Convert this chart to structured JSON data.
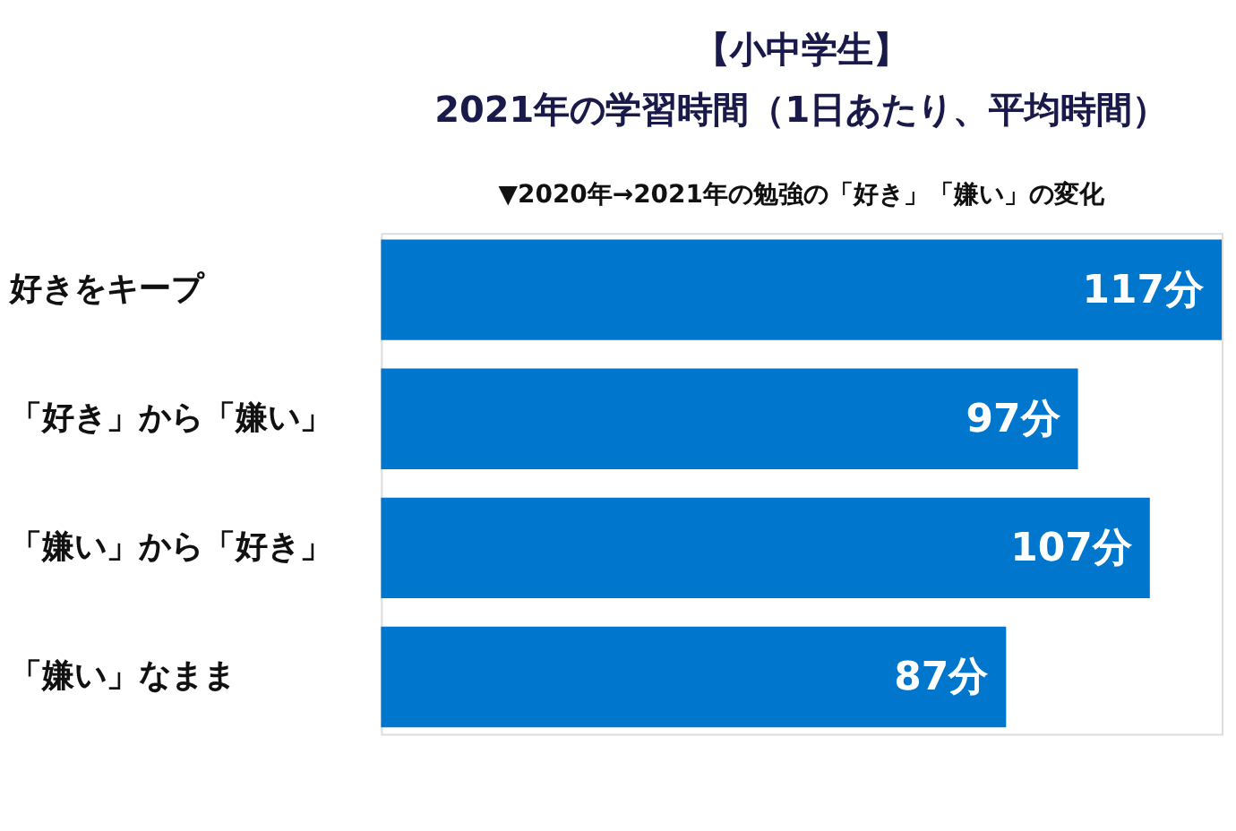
{
  "chart_data": {
    "type": "bar",
    "orientation": "horizontal",
    "title": [
      "【小中学生】",
      "2021年の学習時間（1日あたり、平均時間）"
    ],
    "subtitle": "▼2020年→2021年の勉強の「好き」「嫌い」の変化",
    "categories": [
      "好きをキープ",
      "「好き」から「嫌い」",
      "「嫌い」から「好き」",
      "「嫌い」なまま"
    ],
    "values": [
      117,
      97,
      107,
      87
    ],
    "value_labels": [
      "117分",
      "97分",
      "107分",
      "87分"
    ],
    "color": "#0077cc",
    "grid": false
  }
}
